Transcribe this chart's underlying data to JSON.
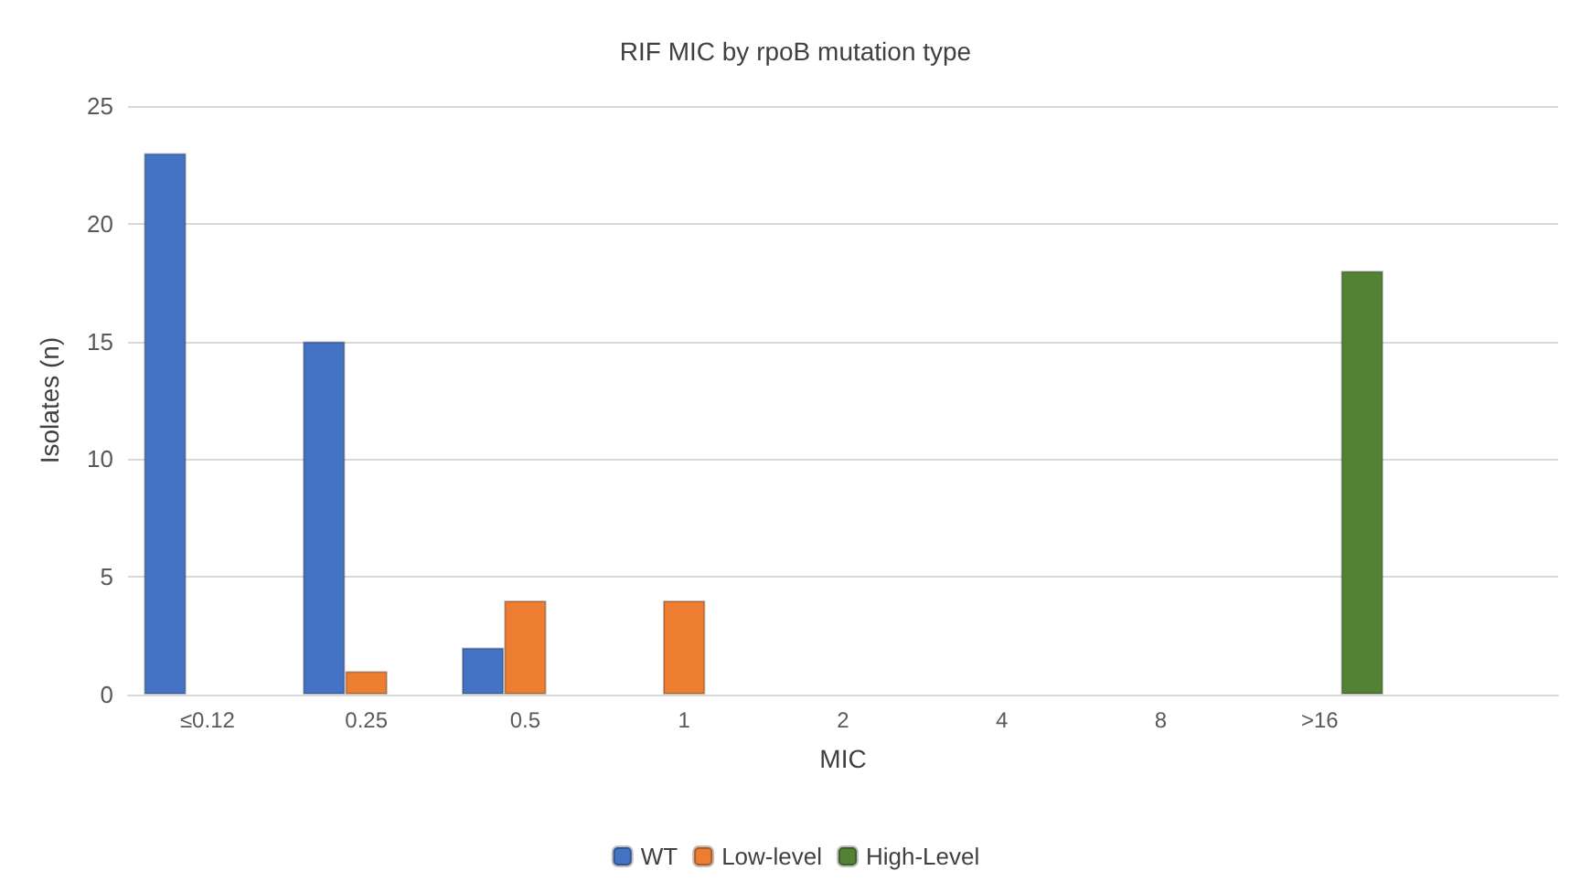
{
  "chart_data": {
    "type": "bar",
    "title": "RIF MIC by rpoB mutation type",
    "xlabel": "MIC",
    "ylabel": "Isolates (n)",
    "categories": [
      "≤0.12",
      "0.25",
      "0.5",
      "1",
      "2",
      "4",
      "8",
      ">16",
      null
    ],
    "series": [
      {
        "name": "WT",
        "color": "#4472c4",
        "values": [
          23,
          15,
          2,
          null,
          null,
          null,
          null,
          null,
          null
        ]
      },
      {
        "name": "Low-level",
        "color": "#ed7d31",
        "values": [
          null,
          1,
          4,
          4,
          null,
          null,
          null,
          null,
          null
        ]
      },
      {
        "name": "High-Level",
        "color": "#548235",
        "values": [
          null,
          null,
          null,
          null,
          null,
          null,
          null,
          18,
          null
        ]
      }
    ],
    "ylim": [
      0,
      25
    ],
    "yticks": [
      0,
      5,
      10,
      15,
      20,
      25
    ],
    "grid": "y",
    "legend": "bottom"
  }
}
